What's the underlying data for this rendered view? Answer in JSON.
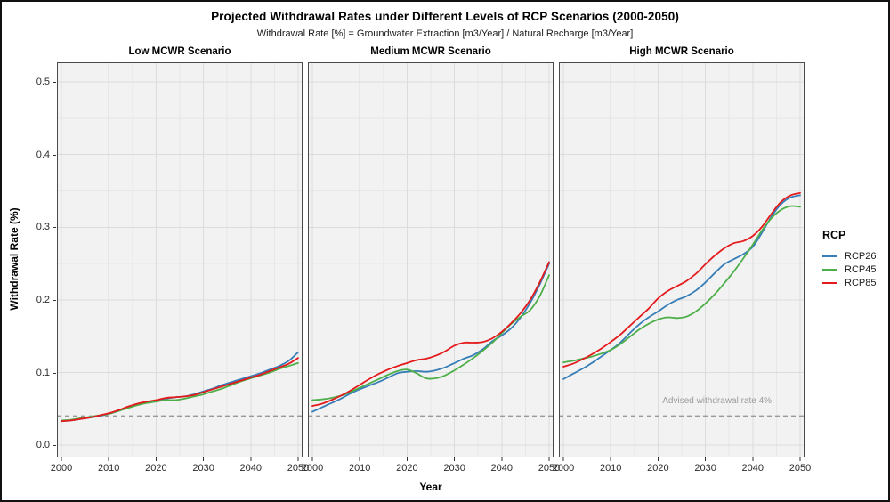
{
  "figure": {
    "title": "Projected Withdrawal Rates under Different Levels of RCP Scenarios (2000-2050)",
    "subtitle": "Withdrawal Rate [%] = Groundwater Extraction [m3/Year] / Natural Recharge [m3/Year]",
    "x_axis_label": "Year",
    "y_axis_label": "Withdrawal Rate (%)"
  },
  "legend": {
    "title": "RCP",
    "items": [
      {
        "label": "RCP26",
        "color": "#377EB8"
      },
      {
        "label": "RCP45",
        "color": "#4DAF4A"
      },
      {
        "label": "RCP85",
        "color": "#E41A1C"
      }
    ]
  },
  "reference_line": {
    "y": 0.04,
    "style": "dashed",
    "color": "#999999"
  },
  "annotation": {
    "text": "Advised withdrawal rate 4%",
    "panel_index": 2,
    "x_year": 2044,
    "y_value": 0.058,
    "color": "#9b9b9b"
  },
  "colors": {
    "panel_background": "#f2f2f2",
    "grid_major": "#dcdcdc",
    "grid_minor": "#e7e7e7",
    "panel_border": "#4a4a4a",
    "tick_mark": "#333333"
  },
  "chart_data": {
    "type": "line",
    "x": [
      2000,
      2002,
      2004,
      2006,
      2008,
      2010,
      2012,
      2014,
      2016,
      2018,
      2020,
      2022,
      2024,
      2026,
      2028,
      2030,
      2032,
      2034,
      2036,
      2038,
      2040,
      2042,
      2044,
      2046,
      2048,
      2050
    ],
    "x_ticks": [
      2000,
      2010,
      2020,
      2030,
      2040,
      2050
    ],
    "y_ticks": [
      {
        "value": 0.0,
        "label": "0.0"
      },
      {
        "value": 0.1,
        "label": "0.1"
      },
      {
        "value": 0.2,
        "label": "0.2"
      },
      {
        "value": 0.3,
        "label": "0.3"
      },
      {
        "value": 0.4,
        "label": "0.4"
      },
      {
        "value": 0.5,
        "label": "0.5"
      }
    ],
    "y_minor_ticks": [
      0.05,
      0.15,
      0.25,
      0.35,
      0.45
    ],
    "x_minor_ticks": [
      2005,
      2015,
      2025,
      2035,
      2045
    ],
    "ylim": [
      -0.017,
      0.527
    ],
    "xlim": [
      2000,
      2050
    ],
    "grid": true,
    "legend_position": "right",
    "panels": [
      {
        "title": "Low MCWR Scenario",
        "series": [
          {
            "name": "RCP26",
            "color": "#377EB8",
            "values": [
              0.033,
              0.034,
              0.036,
              0.038,
              0.04,
              0.043,
              0.047,
              0.052,
              0.056,
              0.059,
              0.061,
              0.064,
              0.066,
              0.067,
              0.07,
              0.074,
              0.078,
              0.083,
              0.087,
              0.091,
              0.095,
              0.099,
              0.104,
              0.109,
              0.116,
              0.128
            ]
          },
          {
            "name": "RCP45",
            "color": "#4DAF4A",
            "values": [
              0.034,
              0.035,
              0.037,
              0.039,
              0.041,
              0.043,
              0.047,
              0.051,
              0.055,
              0.058,
              0.06,
              0.062,
              0.062,
              0.064,
              0.067,
              0.07,
              0.074,
              0.078,
              0.083,
              0.088,
              0.092,
              0.096,
              0.1,
              0.105,
              0.109,
              0.113
            ]
          },
          {
            "name": "RCP85",
            "color": "#E41A1C",
            "values": [
              0.033,
              0.034,
              0.036,
              0.038,
              0.041,
              0.044,
              0.048,
              0.053,
              0.057,
              0.06,
              0.062,
              0.065,
              0.066,
              0.067,
              0.069,
              0.073,
              0.077,
              0.081,
              0.085,
              0.089,
              0.093,
              0.097,
              0.102,
              0.107,
              0.112,
              0.12
            ]
          }
        ]
      },
      {
        "title": "Medium MCWR Scenario",
        "series": [
          {
            "name": "RCP26",
            "color": "#377EB8",
            "values": [
              0.046,
              0.052,
              0.058,
              0.064,
              0.071,
              0.077,
              0.082,
              0.087,
              0.093,
              0.099,
              0.101,
              0.102,
              0.101,
              0.103,
              0.107,
              0.113,
              0.119,
              0.124,
              0.132,
              0.143,
              0.151,
              0.161,
              0.176,
              0.196,
              0.221,
              0.25
            ]
          },
          {
            "name": "RCP45",
            "color": "#4DAF4A",
            "values": [
              0.062,
              0.063,
              0.065,
              0.068,
              0.073,
              0.079,
              0.085,
              0.091,
              0.097,
              0.102,
              0.104,
              0.099,
              0.092,
              0.092,
              0.096,
              0.103,
              0.111,
              0.12,
              0.13,
              0.141,
              0.154,
              0.167,
              0.177,
              0.186,
              0.205,
              0.234
            ]
          },
          {
            "name": "RCP85",
            "color": "#E41A1C",
            "values": [
              0.054,
              0.057,
              0.062,
              0.068,
              0.075,
              0.083,
              0.091,
              0.098,
              0.104,
              0.109,
              0.113,
              0.117,
              0.119,
              0.123,
              0.129,
              0.137,
              0.141,
              0.141,
              0.142,
              0.147,
              0.156,
              0.168,
              0.182,
              0.2,
              0.224,
              0.252
            ]
          }
        ]
      },
      {
        "title": "High MCWR Scenario",
        "series": [
          {
            "name": "RCP26",
            "color": "#377EB8",
            "values": [
              0.091,
              0.098,
              0.105,
              0.113,
              0.122,
              0.131,
              0.141,
              0.154,
              0.166,
              0.176,
              0.184,
              0.193,
              0.2,
              0.205,
              0.213,
              0.224,
              0.237,
              0.249,
              0.256,
              0.263,
              0.273,
              0.293,
              0.315,
              0.332,
              0.341,
              0.344
            ]
          },
          {
            "name": "RCP45",
            "color": "#4DAF4A",
            "values": [
              0.114,
              0.116,
              0.119,
              0.122,
              0.126,
              0.131,
              0.139,
              0.149,
              0.159,
              0.167,
              0.173,
              0.176,
              0.175,
              0.177,
              0.184,
              0.195,
              0.208,
              0.223,
              0.239,
              0.257,
              0.276,
              0.296,
              0.313,
              0.324,
              0.329,
              0.328
            ]
          },
          {
            "name": "RCP85",
            "color": "#E41A1C",
            "values": [
              0.108,
              0.112,
              0.118,
              0.125,
              0.133,
              0.142,
              0.152,
              0.164,
              0.176,
              0.188,
              0.202,
              0.212,
              0.219,
              0.226,
              0.236,
              0.249,
              0.261,
              0.271,
              0.278,
              0.281,
              0.288,
              0.301,
              0.319,
              0.335,
              0.344,
              0.347
            ]
          }
        ]
      }
    ]
  }
}
